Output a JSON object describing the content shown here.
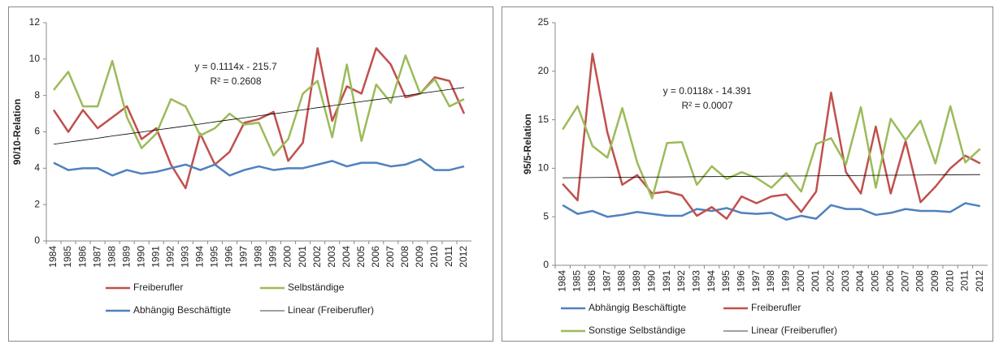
{
  "chart_data": [
    {
      "type": "line",
      "ylabel": "90/10-Relation",
      "categories": [
        "1984",
        "1985",
        "1986",
        "1987",
        "1988",
        "1989",
        "1990",
        "1991",
        "1992",
        "1993",
        "1994",
        "1995",
        "1996",
        "1997",
        "1998",
        "1999",
        "2000",
        "2001",
        "2002",
        "2003",
        "2004",
        "2005",
        "2006",
        "2007",
        "2008",
        "2009",
        "2010",
        "2011",
        "2012"
      ],
      "ylim": [
        0,
        12
      ],
      "yticks": [
        0,
        2,
        4,
        6,
        8,
        10,
        12
      ],
      "grid": false,
      "annotations": [
        "y = 0.1114x - 215.7",
        "R² = 0.2608"
      ],
      "series": [
        {
          "name": "Freiberufler",
          "color": "#c0504d",
          "width": 2.5,
          "values": [
            7.2,
            6.0,
            7.2,
            6.2,
            6.8,
            7.4,
            5.6,
            6.2,
            4.2,
            2.9,
            5.9,
            4.2,
            4.9,
            6.5,
            6.7,
            7.1,
            4.4,
            5.4,
            10.6,
            6.6,
            8.5,
            8.1,
            10.6,
            9.7,
            7.9,
            8.1,
            9.0,
            8.8,
            7.0
          ]
        },
        {
          "name": "Selbständige",
          "color": "#9bbb59",
          "width": 2.5,
          "values": [
            8.3,
            9.3,
            7.4,
            7.4,
            9.9,
            6.8,
            5.1,
            5.9,
            7.8,
            7.4,
            5.8,
            6.2,
            7.0,
            6.4,
            6.5,
            4.7,
            5.6,
            8.1,
            8.8,
            5.7,
            9.7,
            5.5,
            8.6,
            7.6,
            10.2,
            8.1,
            8.9,
            7.4,
            7.8
          ]
        },
        {
          "name": "Abhängig Beschäftigte",
          "color": "#4f81bd",
          "width": 2.5,
          "values": [
            4.3,
            3.9,
            4.0,
            4.0,
            3.6,
            3.9,
            3.7,
            3.8,
            4.0,
            4.2,
            3.9,
            4.2,
            3.6,
            3.9,
            4.1,
            3.9,
            4.0,
            4.0,
            4.2,
            4.4,
            4.1,
            4.3,
            4.3,
            4.1,
            4.2,
            4.5,
            3.9,
            3.9,
            4.1
          ]
        },
        {
          "name": "Linear (Freiberufler)",
          "color": "#000000",
          "width": 0.8,
          "values": [
            5.32,
            5.43,
            5.54,
            5.65,
            5.77,
            5.88,
            5.99,
            6.1,
            6.21,
            6.32,
            6.43,
            6.55,
            6.66,
            6.77,
            6.88,
            6.99,
            7.1,
            7.21,
            7.33,
            7.44,
            7.55,
            7.66,
            7.77,
            7.88,
            7.99,
            8.11,
            8.22,
            8.33,
            8.44
          ]
        }
      ]
    },
    {
      "type": "line",
      "ylabel": "95/5-Relation",
      "categories": [
        "1984",
        "1985",
        "1986",
        "1987",
        "1988",
        "1989",
        "1990",
        "1991",
        "1992",
        "1993",
        "1994",
        "1995",
        "1996",
        "1997",
        "1998",
        "1999",
        "2000",
        "2001",
        "2002",
        "2003",
        "2004",
        "2005",
        "2006",
        "2007",
        "2008",
        "2009",
        "2010",
        "2011",
        "2012"
      ],
      "ylim": [
        0,
        25
      ],
      "yticks": [
        0,
        5,
        10,
        15,
        20,
        25
      ],
      "grid": false,
      "annotations": [
        "y = 0.0118x - 14.391",
        "R² = 0.0007"
      ],
      "series": [
        {
          "name": "Abhängig Beschäftigte",
          "color": "#4f81bd",
          "width": 2.5,
          "values": [
            6.2,
            5.3,
            5.6,
            5.0,
            5.2,
            5.5,
            5.3,
            5.1,
            5.1,
            5.8,
            5.6,
            5.9,
            5.4,
            5.3,
            5.4,
            4.7,
            5.1,
            4.8,
            6.2,
            5.8,
            5.8,
            5.2,
            5.4,
            5.8,
            5.6,
            5.6,
            5.5,
            6.4,
            6.1
          ]
        },
        {
          "name": "Freiberufler",
          "color": "#c0504d",
          "width": 2.5,
          "values": [
            8.4,
            6.7,
            21.8,
            13.7,
            8.3,
            9.3,
            7.4,
            7.6,
            7.2,
            5.1,
            6.0,
            4.8,
            7.1,
            6.4,
            7.1,
            7.3,
            5.5,
            7.6,
            17.8,
            9.6,
            7.4,
            14.3,
            7.4,
            12.8,
            6.5,
            8.1,
            10.0,
            11.3,
            10.5
          ]
        },
        {
          "name": "Sonstige Selbständige",
          "color": "#9bbb59",
          "width": 2.5,
          "values": [
            14.0,
            16.4,
            12.3,
            11.1,
            16.2,
            10.6,
            6.9,
            12.6,
            12.7,
            8.3,
            10.2,
            8.9,
            9.6,
            9.0,
            8.0,
            9.5,
            7.6,
            12.5,
            13.1,
            10.4,
            16.3,
            8.0,
            15.1,
            12.9,
            14.9,
            10.5,
            16.4,
            10.6,
            12.0
          ]
        },
        {
          "name": "Linear (Freiberufler)",
          "color": "#000000",
          "width": 0.8,
          "values": [
            9.02,
            9.03,
            9.04,
            9.06,
            9.07,
            9.08,
            9.09,
            9.1,
            9.11,
            9.13,
            9.14,
            9.15,
            9.16,
            9.17,
            9.19,
            9.2,
            9.21,
            9.22,
            9.23,
            9.24,
            9.26,
            9.27,
            9.28,
            9.29,
            9.3,
            9.32,
            9.33,
            9.34,
            9.35
          ]
        }
      ]
    }
  ]
}
